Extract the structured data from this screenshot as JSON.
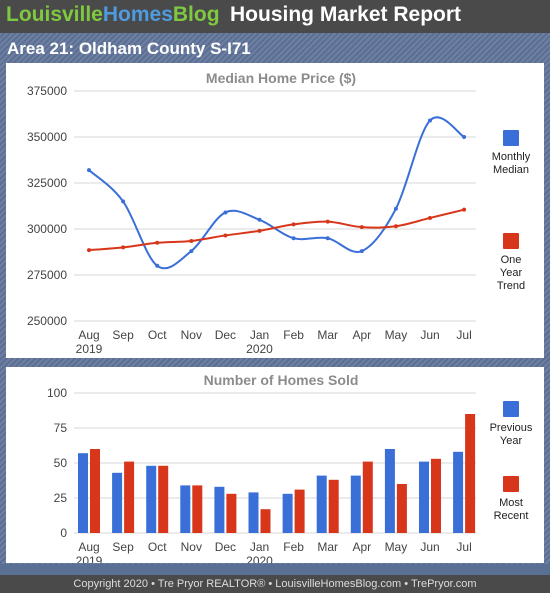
{
  "header": {
    "brand_part1": "Louisville",
    "brand_part2": "Homes",
    "brand_part3": "Blog",
    "title": "Housing Market Report",
    "subtitle": "Area 21: Oldham County S-I71"
  },
  "footer": "Copyright 2020 • Tre Pryor REALTOR® • LouisvilleHomesBlog.com • TrePryor.com",
  "colors": {
    "blue": "#3a6fd8",
    "red": "#d8361b",
    "grid": "#d7d7d7",
    "axis_text": "#444444",
    "title_text": "#8c8c8c"
  },
  "months": [
    "Aug",
    "Sep",
    "Oct",
    "Nov",
    "Dec",
    "Jan",
    "Feb",
    "Mar",
    "Apr",
    "May",
    "Jun",
    "Jul"
  ],
  "years": [
    "2019",
    "2020"
  ],
  "chart_data": [
    {
      "type": "line",
      "title": "Median Home Price ($)",
      "categories": [
        "Aug",
        "Sep",
        "Oct",
        "Nov",
        "Dec",
        "Jan",
        "Feb",
        "Mar",
        "Apr",
        "May",
        "Jun",
        "Jul"
      ],
      "ylim": [
        250000,
        375000
      ],
      "yticks": [
        "375000",
        "350000",
        "325000",
        "300000",
        "275000",
        "250000"
      ],
      "grid": true,
      "legend_position": "right",
      "series": [
        {
          "name": "Monthly Median",
          "color": "#3a6fd8",
          "values": [
            332000,
            315000,
            280000,
            288000,
            309000,
            305000,
            295000,
            295000,
            288000,
            311000,
            359000,
            350000
          ]
        },
        {
          "name": "One Year Trend",
          "color": "#d8361b",
          "values": [
            288500,
            290000,
            292500,
            293500,
            296500,
            299000,
            302500,
            304000,
            301000,
            301500,
            306000,
            310500
          ]
        }
      ]
    },
    {
      "type": "bar",
      "title": "Number of Homes Sold",
      "categories": [
        "Aug",
        "Sep",
        "Oct",
        "Nov",
        "Dec",
        "Jan",
        "Feb",
        "Mar",
        "Apr",
        "May",
        "Jun",
        "Jul"
      ],
      "ylim": [
        0,
        100
      ],
      "yticks": [
        "100",
        "75",
        "50",
        "25",
        "0"
      ],
      "grid": true,
      "legend_position": "right",
      "series": [
        {
          "name": "Previous Year",
          "color": "#3a6fd8",
          "values": [
            57,
            43,
            48,
            34,
            33,
            29,
            28,
            41,
            41,
            60,
            51,
            58
          ]
        },
        {
          "name": "Most Recent",
          "color": "#d8361b",
          "values": [
            60,
            51,
            48,
            34,
            28,
            17,
            31,
            38,
            51,
            35,
            53,
            85
          ]
        }
      ]
    }
  ],
  "legend_labels": {
    "monthly_median": [
      "Monthly",
      "Median"
    ],
    "one_year_trend": [
      "One",
      "Year",
      "Trend"
    ],
    "previous_year": [
      "Previous",
      "Year"
    ],
    "most_recent": [
      "Most",
      "Recent"
    ]
  }
}
